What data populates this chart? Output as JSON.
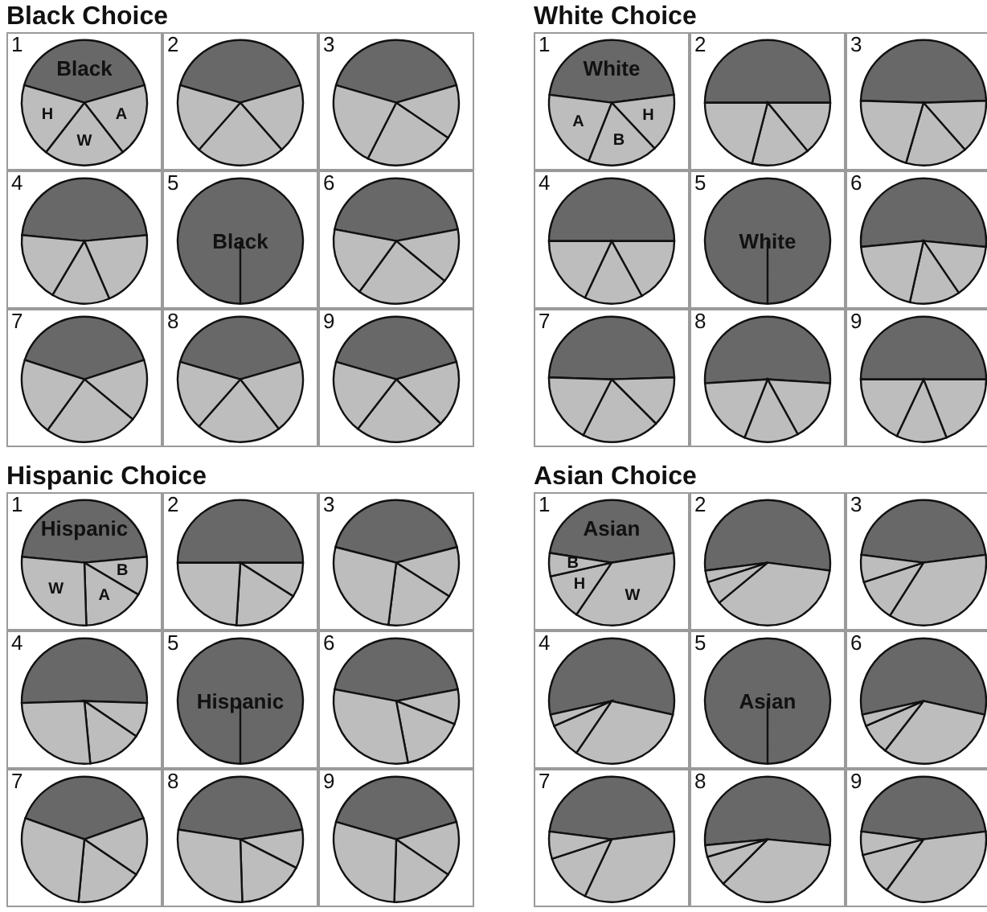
{
  "chart_data": [
    {
      "type": "pie",
      "title": "Black Choice",
      "categories": [
        null,
        null,
        null,
        null
      ],
      "colors": [
        "#686868",
        "#bdbdbd",
        "#bdbdbd",
        "#bdbdbd"
      ],
      "series": [
        {
          "name": "1",
          "values": [
            41,
            19,
            21,
            19
          ],
          "value_labels": [
            "Black",
            "A",
            "W",
            "H"
          ]
        },
        {
          "name": "2",
          "values": [
            41,
            18,
            23,
            18
          ]
        },
        {
          "name": "3",
          "values": [
            41,
            14,
            23,
            22
          ]
        },
        {
          "name": "4",
          "values": [
            47,
            20,
            15,
            18
          ]
        },
        {
          "name": "5",
          "values": [
            100,
            0,
            0,
            0
          ],
          "value_labels": [
            "Black",
            null,
            null,
            null
          ]
        },
        {
          "name": "6",
          "values": [
            44,
            14,
            24,
            18
          ]
        },
        {
          "name": "7",
          "values": [
            40,
            16,
            24,
            20
          ]
        },
        {
          "name": "8",
          "values": [
            41,
            19,
            22,
            18
          ]
        },
        {
          "name": "9",
          "values": [
            41,
            17,
            23,
            19
          ]
        }
      ]
    },
    {
      "type": "pie",
      "title": "White Choice",
      "categories": [
        null,
        null,
        null,
        null
      ],
      "colors": [
        "#686868",
        "#bdbdbd",
        "#bdbdbd",
        "#bdbdbd"
      ],
      "series": [
        {
          "name": "1",
          "values": [
            46,
            15,
            18,
            21
          ],
          "value_labels": [
            "White",
            "H",
            "B",
            "A"
          ]
        },
        {
          "name": "2",
          "values": [
            50,
            14,
            15,
            21
          ]
        },
        {
          "name": "3",
          "values": [
            49,
            14,
            16,
            21
          ]
        },
        {
          "name": "4",
          "values": [
            50,
            17,
            15,
            18
          ]
        },
        {
          "name": "5",
          "values": [
            100,
            0,
            0,
            0
          ],
          "value_labels": [
            "White",
            null,
            null,
            null
          ]
        },
        {
          "name": "6",
          "values": [
            53,
            14,
            13,
            20
          ]
        },
        {
          "name": "7",
          "values": [
            49,
            13,
            20,
            18
          ]
        },
        {
          "name": "8",
          "values": [
            52,
            16,
            14,
            18
          ]
        },
        {
          "name": "9",
          "values": [
            50,
            19,
            13,
            18
          ]
        }
      ]
    },
    {
      "type": "pie",
      "title": "Hispanic Choice",
      "categories": [
        null,
        null,
        null,
        null
      ],
      "colors": [
        "#686868",
        "#bdbdbd",
        "#bdbdbd",
        "#bdbdbd"
      ],
      "series": [
        {
          "name": "1",
          "values": [
            47,
            10,
            16,
            27
          ],
          "value_labels": [
            "Hispanic",
            "B",
            "A",
            "W"
          ]
        },
        {
          "name": "2",
          "values": [
            50,
            9,
            17,
            24
          ]
        },
        {
          "name": "3",
          "values": [
            42,
            13,
            18,
            27
          ]
        },
        {
          "name": "4",
          "values": [
            51,
            9,
            14,
            26
          ]
        },
        {
          "name": "5",
          "values": [
            100,
            0,
            0,
            0
          ],
          "value_labels": [
            "Hispanic",
            null,
            null,
            null
          ]
        },
        {
          "name": "6",
          "values": [
            44,
            9,
            16,
            31
          ]
        },
        {
          "name": "7",
          "values": [
            39,
            15,
            17,
            29
          ]
        },
        {
          "name": "8",
          "values": [
            45,
            10,
            17,
            28
          ]
        },
        {
          "name": "9",
          "values": [
            41,
            14,
            16,
            29
          ]
        }
      ]
    },
    {
      "type": "pie",
      "title": "Asian Choice",
      "categories": [
        null,
        null,
        null,
        null
      ],
      "colors": [
        "#686868",
        "#bdbdbd",
        "#bdbdbd",
        "#bdbdbd"
      ],
      "series": [
        {
          "name": "1",
          "values": [
            45,
            37,
            12,
            6
          ],
          "value_labels": [
            "Asian",
            "W",
            "H",
            "B"
          ]
        },
        {
          "name": "2",
          "values": [
            54,
            37,
            6,
            3
          ]
        },
        {
          "name": "3",
          "values": [
            46,
            36,
            11,
            7
          ]
        },
        {
          "name": "4",
          "values": [
            57,
            31,
            9,
            3
          ]
        },
        {
          "name": "5",
          "values": [
            100,
            0,
            0,
            0
          ],
          "value_labels": [
            "Asian",
            null,
            null,
            null
          ]
        },
        {
          "name": "6",
          "values": [
            57,
            32,
            8,
            3
          ]
        },
        {
          "name": "7",
          "values": [
            46,
            34,
            13,
            7
          ]
        },
        {
          "name": "8",
          "values": [
            53,
            36,
            8,
            3
          ]
        },
        {
          "name": "9",
          "values": [
            46,
            37,
            11,
            6
          ]
        }
      ]
    }
  ]
}
